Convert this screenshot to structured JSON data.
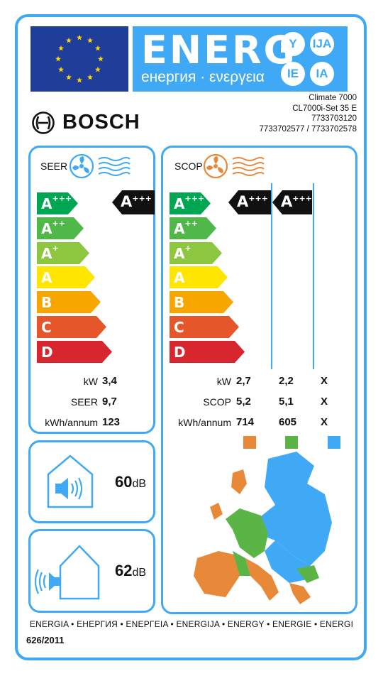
{
  "colors": {
    "accent": "#3fa9f5",
    "eu_blue": "#1f3e9a",
    "eu_star": "#ffd500",
    "class_colors": [
      "#00a651",
      "#50b848",
      "#8dc63f",
      "#ffe600",
      "#f7a600",
      "#e5562b",
      "#d7262e"
    ],
    "climate_colder": "#3fa9f5",
    "climate_average": "#5ab546",
    "climate_warmer": "#e8893a"
  },
  "header": {
    "energy_word": "ENERG",
    "energy_sub": "енергия · ενεργεια",
    "lang_badges": [
      "Y",
      "IJA",
      "IE",
      "IA"
    ],
    "eu_flag_icon": "eu-flag-icon"
  },
  "brand": {
    "name": "BOSCH",
    "logo_icon": "bosch-armature-icon"
  },
  "model": {
    "line1": "Climate 7000",
    "line2": "CL7000i-Set 35 E",
    "line3": "7733703120",
    "line4": "7733702577 / 7733702578"
  },
  "scale_classes": [
    {
      "base": "A",
      "sup": "+++"
    },
    {
      "base": "A",
      "sup": "++"
    },
    {
      "base": "A",
      "sup": "+"
    },
    {
      "base": "A",
      "sup": ""
    },
    {
      "base": "B",
      "sup": ""
    },
    {
      "base": "C",
      "sup": ""
    },
    {
      "base": "D",
      "sup": ""
    }
  ],
  "cooling": {
    "title": "SEER",
    "icon": "fan-cooling-icon",
    "rating": {
      "base": "A",
      "sup": "+++"
    },
    "rows": [
      {
        "label": "kW",
        "value": "3,4"
      },
      {
        "label": "SEER",
        "value": "9,7"
      },
      {
        "label": "kWh/annum",
        "value": "123"
      }
    ]
  },
  "heating": {
    "title": "SCOP",
    "icon": "fan-heating-icon",
    "ratings": [
      {
        "base": "A",
        "sup": "+++"
      },
      {
        "base": "A",
        "sup": "+++"
      }
    ],
    "rows": [
      {
        "label": "kW",
        "values": [
          "2,7",
          "2,2",
          "X"
        ]
      },
      {
        "label": "SCOP",
        "values": [
          "5,2",
          "5,1",
          "X"
        ]
      },
      {
        "label": "kWh/annum",
        "values": [
          "714",
          "605",
          "X"
        ]
      }
    ],
    "zone_icons": [
      "warmer-zone-square",
      "average-zone-square",
      "colder-zone-square"
    ]
  },
  "noise_indoor": {
    "icon": "indoor-noise-icon",
    "value": "60",
    "unit": "dB"
  },
  "noise_outdoor": {
    "icon": "outdoor-noise-icon",
    "value": "62",
    "unit": "dB"
  },
  "map": {
    "icon": "europe-climate-zones-map"
  },
  "footer": {
    "languages": "ENERGIA • ЕНЕРГИЯ • ΕΝΕΡΓΕΙΑ • ENERGIJA • ENERGY • ENERGIE • ENERGI",
    "regulation": "626/2011"
  }
}
